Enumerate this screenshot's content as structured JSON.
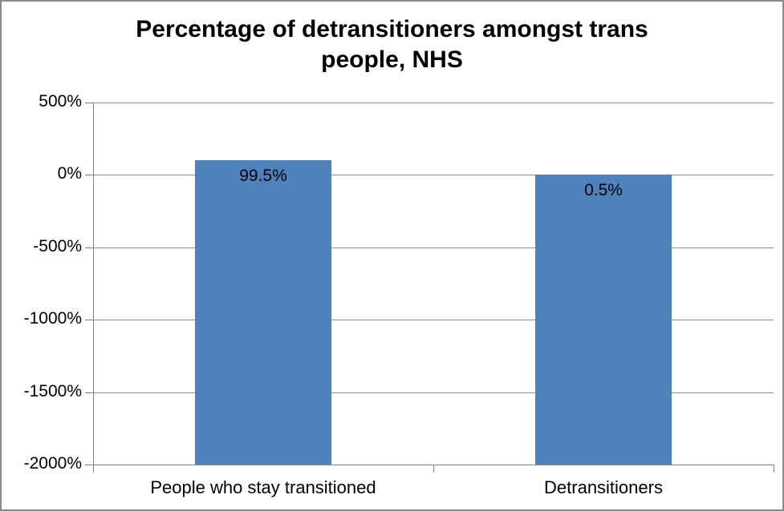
{
  "chart_data": {
    "type": "bar",
    "title": "Percentage of detransitioners amongst trans people, NHS",
    "categories": [
      "People who stay transitioned",
      "Detransitioners"
    ],
    "values": [
      99.5,
      0.5
    ],
    "data_labels": [
      "99.5%",
      "0.5%"
    ],
    "xlabel": "",
    "ylabel": "",
    "ylim": [
      -2000,
      500
    ],
    "yticks": [
      500,
      0,
      -500,
      -1000,
      -1500,
      -2000
    ],
    "ytick_labels": [
      "500%",
      "0%",
      "-500%",
      "-1000%",
      "-1500%",
      "-2000%"
    ],
    "bar_base": -2000,
    "grid": true,
    "legend_position": "none",
    "colors": {
      "bar_fill": "#4F81BD",
      "gridline": "#8e8e8e",
      "axis": "#808080",
      "text": "#000000",
      "frame_border": "#8a8a8a",
      "background": "#ffffff"
    }
  }
}
